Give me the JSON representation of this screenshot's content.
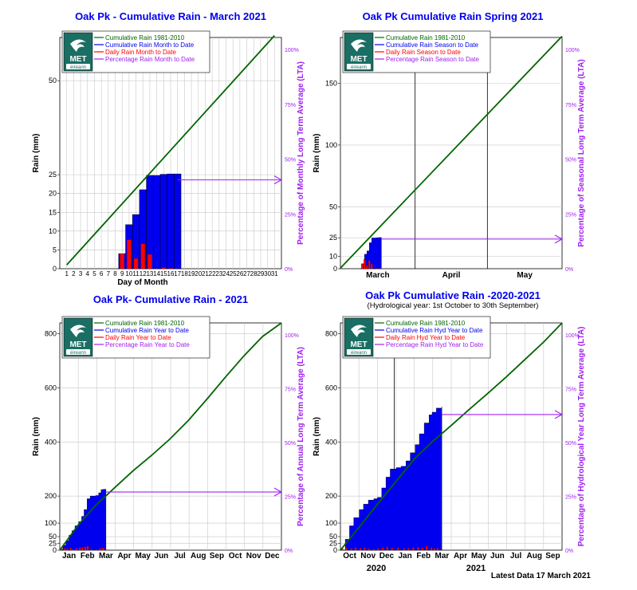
{
  "footer": "Latest Data 17 March 2021",
  "logo": {
    "text_met": "MET",
    "text_eireann": "éireann",
    "colors": {
      "bg": "#1a6e63",
      "fg": "#ffffff"
    }
  },
  "colors": {
    "lta": "#006400",
    "cum": "#0000ee",
    "daily": "#ff0000",
    "pct": "#a020f0",
    "grid": "#c8c8c8",
    "title": "#0000ee"
  },
  "chart_data": [
    {
      "type": "bar",
      "title": "Oak Pk - Cumulative Rain -  March   2021",
      "ylabel": "Rain (mm)",
      "xlabel": "Day of Month",
      "y2label": "Percentage  of Monthly Long Term Average (LTA)",
      "ylim": [
        0,
        61.5
      ],
      "yticks": [
        0,
        5,
        10,
        15,
        20,
        25,
        50
      ],
      "y2ticks": [
        "0%",
        "25%",
        "50%",
        "75%",
        "100%"
      ],
      "xlim": [
        0,
        32
      ],
      "xticks": [
        "1",
        "2",
        "3",
        "4",
        "5",
        "6",
        "7",
        "8",
        "9",
        "10",
        "11",
        "12",
        "13",
        "14",
        "15",
        "16",
        "17",
        "18",
        "19",
        "20",
        "21",
        "22",
        "23",
        "24",
        "25",
        "26",
        "27",
        "28",
        "29",
        "30",
        "31"
      ],
      "legend": [
        "Cumulative Rain 1981-2010",
        "Cumulative Rain Month to Date",
        "Daily Rain Month to Date",
        "Percentage Rain Month to Date"
      ],
      "lta": {
        "x": [
          1,
          31
        ],
        "y": [
          1.0,
          62.0
        ]
      },
      "cumulative": {
        "x": [
          9,
          10,
          11,
          12,
          13,
          14,
          15,
          16,
          17
        ],
        "y": [
          4.0,
          11.7,
          14.4,
          21.0,
          24.8,
          24.8,
          25.1,
          25.2,
          25.2
        ]
      },
      "daily": {
        "x": [
          9,
          10,
          11,
          12,
          13,
          14,
          15,
          16,
          17
        ],
        "y": [
          4.0,
          7.7,
          2.7,
          6.6,
          3.8,
          0.0,
          0.3,
          0.1,
          0.0
        ]
      },
      "pct_to_date": {
        "x_from": 17,
        "x_to": 31,
        "pct": 40.5
      }
    },
    {
      "type": "line",
      "title": "Oak Pk Cumulative Rain Spring 2021",
      "ylabel": "Rain (mm)",
      "xlabel": "",
      "y2label": "Percentage of Seasonal Long Term Average (LTA)",
      "ylim": [
        0,
        187
      ],
      "yticks": [
        0,
        10,
        25,
        50,
        100,
        150
      ],
      "y2ticks": [
        "0%",
        "25%",
        "50%",
        "75%",
        "100%"
      ],
      "xlim": [
        0,
        92
      ],
      "month_labels": [
        "March",
        "April",
        "May"
      ],
      "month_bounds": [
        0,
        31,
        61,
        92
      ],
      "legend": [
        "Cumulative Rain 1981-2010",
        "Cumulative Rain Season to Date",
        "Daily Rain Season to Date",
        "Percentage Rain Season to Date"
      ],
      "lta": {
        "x": [
          0,
          92
        ],
        "y": [
          0.5,
          188
        ]
      },
      "cumulative": {
        "x": [
          8,
          9,
          10,
          11,
          12,
          13,
          14,
          15,
          16,
          17
        ],
        "y": [
          0,
          4.0,
          11.7,
          14.4,
          21.0,
          24.8,
          24.8,
          25.1,
          25.2,
          25.2
        ]
      },
      "daily": {
        "x": [
          9,
          10,
          11,
          12,
          13,
          14,
          15,
          16,
          17
        ],
        "y": [
          4.0,
          7.7,
          2.7,
          6.6,
          3.8,
          0.0,
          0.3,
          0.1,
          0.0
        ]
      },
      "pct_to_date": {
        "x_from": 17,
        "x_to": 92,
        "pct": 13.5
      }
    },
    {
      "type": "line",
      "title": "Oak Pk- Cumulative Rain - 2021",
      "ylabel": "Rain (mm)",
      "xlabel": "",
      "y2label": "Percentage of Annual Long Term Average (LTA)",
      "ylim": [
        0,
        840
      ],
      "yticks": [
        0,
        25,
        50,
        100,
        200,
        400,
        600,
        800
      ],
      "y2ticks": [
        "0%",
        "25%",
        "50%",
        "75%",
        "100%"
      ],
      "xlim": [
        0,
        365
      ],
      "month_labels": [
        "Jan",
        "Feb",
        "Mar",
        "Apr",
        "May",
        "Jun",
        "Jul",
        "Aug",
        "Sep",
        "Oct",
        "Nov",
        "Dec"
      ],
      "legend": [
        "Cumulative Rain 1981-2010",
        "Cumulative Rain Year to Date",
        "Daily Rain Year to Date",
        "Percentage Rain Year to Date"
      ],
      "lta": {
        "x": [
          0,
          31,
          59,
          90,
          120,
          151,
          181,
          212,
          243,
          273,
          304,
          334,
          365
        ],
        "y": [
          0,
          95,
          165,
          230,
          292,
          350,
          410,
          480,
          560,
          640,
          720,
          790,
          840
        ]
      },
      "cumulative": {
        "x": [
          0,
          5,
          10,
          15,
          20,
          25,
          31,
          36,
          40,
          45,
          50,
          55,
          59,
          64,
          68,
          72,
          76
        ],
        "y": [
          0,
          18,
          35,
          55,
          72,
          90,
          105,
          125,
          150,
          190,
          200,
          200,
          202,
          212,
          224,
          225,
          225
        ]
      },
      "daily": {
        "x": [
          3,
          8,
          12,
          18,
          22,
          27,
          33,
          37,
          42,
          46,
          52,
          60,
          66,
          70,
          72
        ],
        "y": [
          4,
          6,
          5,
          8,
          3,
          6,
          9,
          10,
          12,
          15,
          3,
          2,
          6,
          8,
          7
        ]
      },
      "pct_to_date": {
        "x_from": 76,
        "x_to": 365,
        "pct": 27
      }
    },
    {
      "type": "line",
      "title": "Oak Pk Cumulative Rain -2020-2021",
      "subtitle": "(Hydrological year: 1st October to 30th September)",
      "ylabel": "Rain (mm)",
      "xlabel": "",
      "y2label": "Percentage  of Hydrological Year Long Term Average (LTA)",
      "ylim": [
        0,
        840
      ],
      "yticks": [
        0,
        25,
        50,
        100,
        200,
        400,
        600,
        800
      ],
      "y2ticks": [
        "0%",
        "25%",
        "50%",
        "75%",
        "100%"
      ],
      "xlim": [
        0,
        365
      ],
      "month_labels": [
        "Oct",
        "Nov",
        "Dec",
        "Jan",
        "Feb",
        "Mar",
        "Apr",
        "May",
        "Jun",
        "Jul",
        "Aug",
        "Sep"
      ],
      "year_labels": [
        "2020",
        "2021"
      ],
      "legend": [
        "Cumulative Rain 1981-2010",
        "Cumulative Rain Hyd Year to Date",
        "Daily Rain Hyd Year to Date",
        "Percentage Rain Hyd Year to Date"
      ],
      "lta": {
        "x": [
          0,
          31,
          61,
          92,
          123,
          151,
          182,
          212,
          243,
          273,
          304,
          335,
          365
        ],
        "y": [
          0,
          85,
          170,
          255,
          340,
          400,
          460,
          520,
          580,
          640,
          705,
          770,
          840
        ]
      },
      "cumulative": {
        "x": [
          0,
          8,
          15,
          22,
          31,
          38,
          46,
          55,
          61,
          68,
          75,
          82,
          92,
          100,
          108,
          115,
          123,
          130,
          138,
          146,
          151,
          158,
          167
        ],
        "y": [
          0,
          40,
          90,
          120,
          150,
          170,
          185,
          190,
          195,
          230,
          270,
          300,
          305,
          310,
          330,
          360,
          390,
          430,
          470,
          500,
          510,
          525,
          530
        ]
      },
      "daily": {
        "x": [
          3,
          10,
          18,
          25,
          33,
          40,
          47,
          55,
          62,
          70,
          77,
          85,
          95,
          105,
          112,
          120,
          128,
          135,
          142,
          150,
          155,
          160
        ],
        "y": [
          5,
          8,
          6,
          10,
          7,
          9,
          5,
          4,
          6,
          10,
          12,
          8,
          9,
          6,
          7,
          10,
          11,
          8,
          15,
          9,
          6,
          7
        ]
      },
      "pct_to_date": {
        "x_from": 167,
        "x_to": 365,
        "pct": 63
      }
    }
  ]
}
